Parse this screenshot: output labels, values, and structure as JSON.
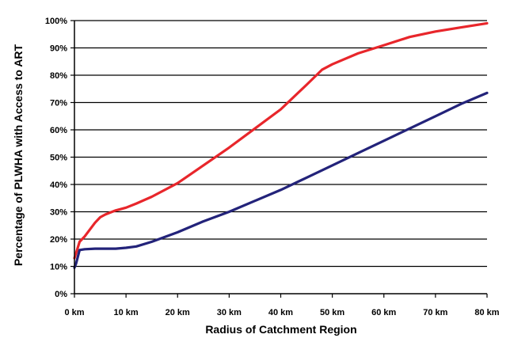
{
  "chart_data": {
    "type": "line",
    "title": "",
    "xlabel": "Radius of Catchment Region",
    "ylabel": "Percentage of PLWHA with Access to ART",
    "xlim": [
      0,
      80
    ],
    "ylim": [
      0,
      100
    ],
    "x_ticks": [
      "0 km",
      "10 km",
      "20 km",
      "30 km",
      "40 km",
      "50 km",
      "60 km",
      "70 km",
      "80 km"
    ],
    "y_ticks": [
      "0%",
      "10%",
      "20%",
      "30%",
      "40%",
      "50%",
      "60%",
      "70%",
      "80%",
      "90%",
      "100%"
    ],
    "grid": "horizontal",
    "legend": "none",
    "series": [
      {
        "color": "#e8262b",
        "x": [
          0,
          0.5,
          1,
          2,
          3,
          4,
          5,
          6,
          8,
          10,
          12,
          15,
          20,
          25,
          30,
          35,
          40,
          45,
          48,
          50,
          55,
          60,
          65,
          70,
          75,
          80
        ],
        "y": [
          13,
          16,
          19,
          21,
          23.5,
          26,
          28,
          29,
          30.5,
          31.5,
          33,
          35.5,
          40.5,
          47,
          53.5,
          60.5,
          67.5,
          76.5,
          82,
          84,
          88,
          91,
          94,
          96,
          97.5,
          99
        ]
      },
      {
        "color": "#23237a",
        "x": [
          0,
          0.3,
          1,
          2,
          4,
          6,
          8,
          10,
          12,
          15,
          20,
          25,
          30,
          35,
          40,
          45,
          50,
          55,
          60,
          65,
          70,
          75,
          80
        ],
        "y": [
          9.5,
          11,
          16,
          16.3,
          16.5,
          16.5,
          16.5,
          16.8,
          17.3,
          19,
          22.5,
          26.5,
          30,
          34,
          38,
          42.5,
          47,
          51.5,
          56,
          60.5,
          65,
          69.5,
          73.5
        ]
      }
    ]
  }
}
